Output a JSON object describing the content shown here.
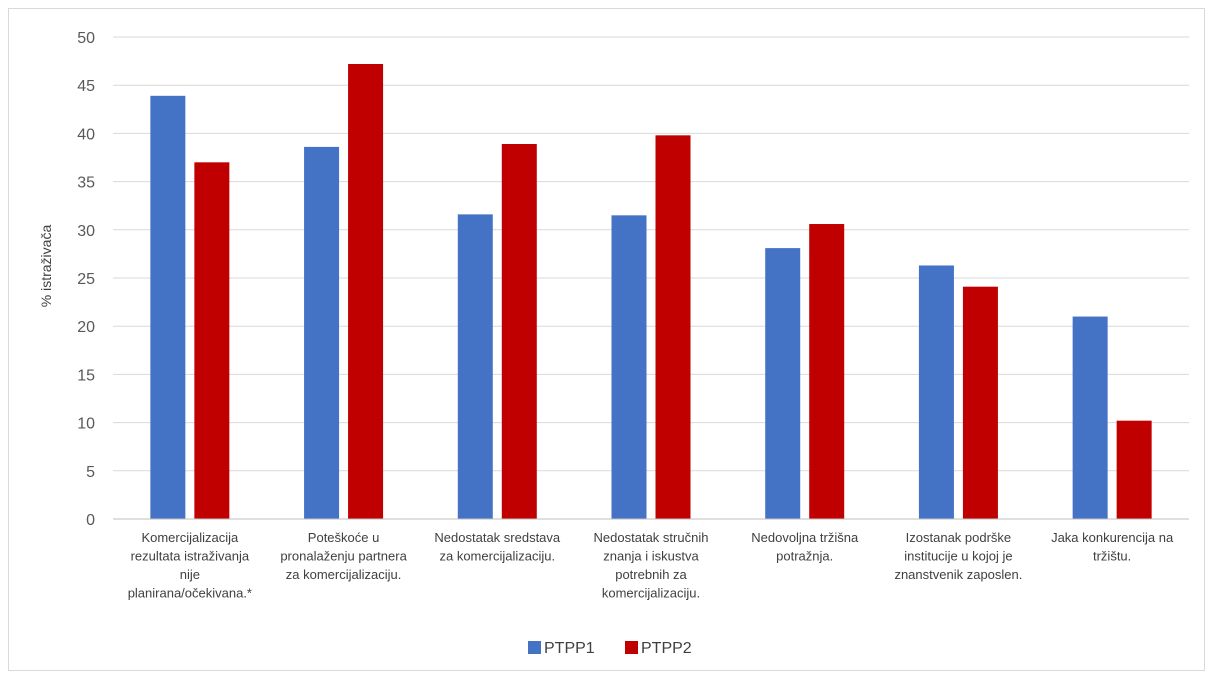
{
  "chart_data": {
    "type": "bar",
    "title": "",
    "xlabel": "",
    "ylabel": "% istraživača",
    "ylim": [
      0,
      50
    ],
    "yticks": [
      0,
      5,
      10,
      15,
      20,
      25,
      30,
      35,
      40,
      45,
      50
    ],
    "grid": true,
    "legend_position": "bottom",
    "categories": [
      [
        "Komercijalizacija",
        "rezultata istraživanja",
        "nije",
        "planirana/očekivana.*"
      ],
      [
        "Poteškoće u",
        "pronalaženju partnera",
        "za komercijalizaciju."
      ],
      [
        "Nedostatak sredstava",
        "za komercijalizaciju."
      ],
      [
        "Nedostatak stručnih",
        "znanja i iskustva",
        "potrebnih za",
        "komercijalizaciju."
      ],
      [
        "Nedovoljna tržišna",
        "potražnja."
      ],
      [
        "Izostanak podrške",
        "institucije u kojoj je",
        "znanstvenik zaposlen."
      ],
      [
        "Jaka konkurencija na",
        "tržištu."
      ]
    ],
    "series": [
      {
        "name": "PTPP1",
        "color": "#4472c4",
        "values": [
          43.9,
          38.6,
          31.6,
          31.5,
          28.1,
          26.3,
          21.0
        ]
      },
      {
        "name": "PTPP2",
        "color": "#c00000",
        "values": [
          37.0,
          47.2,
          38.9,
          39.8,
          30.6,
          24.1,
          10.2
        ]
      }
    ]
  }
}
